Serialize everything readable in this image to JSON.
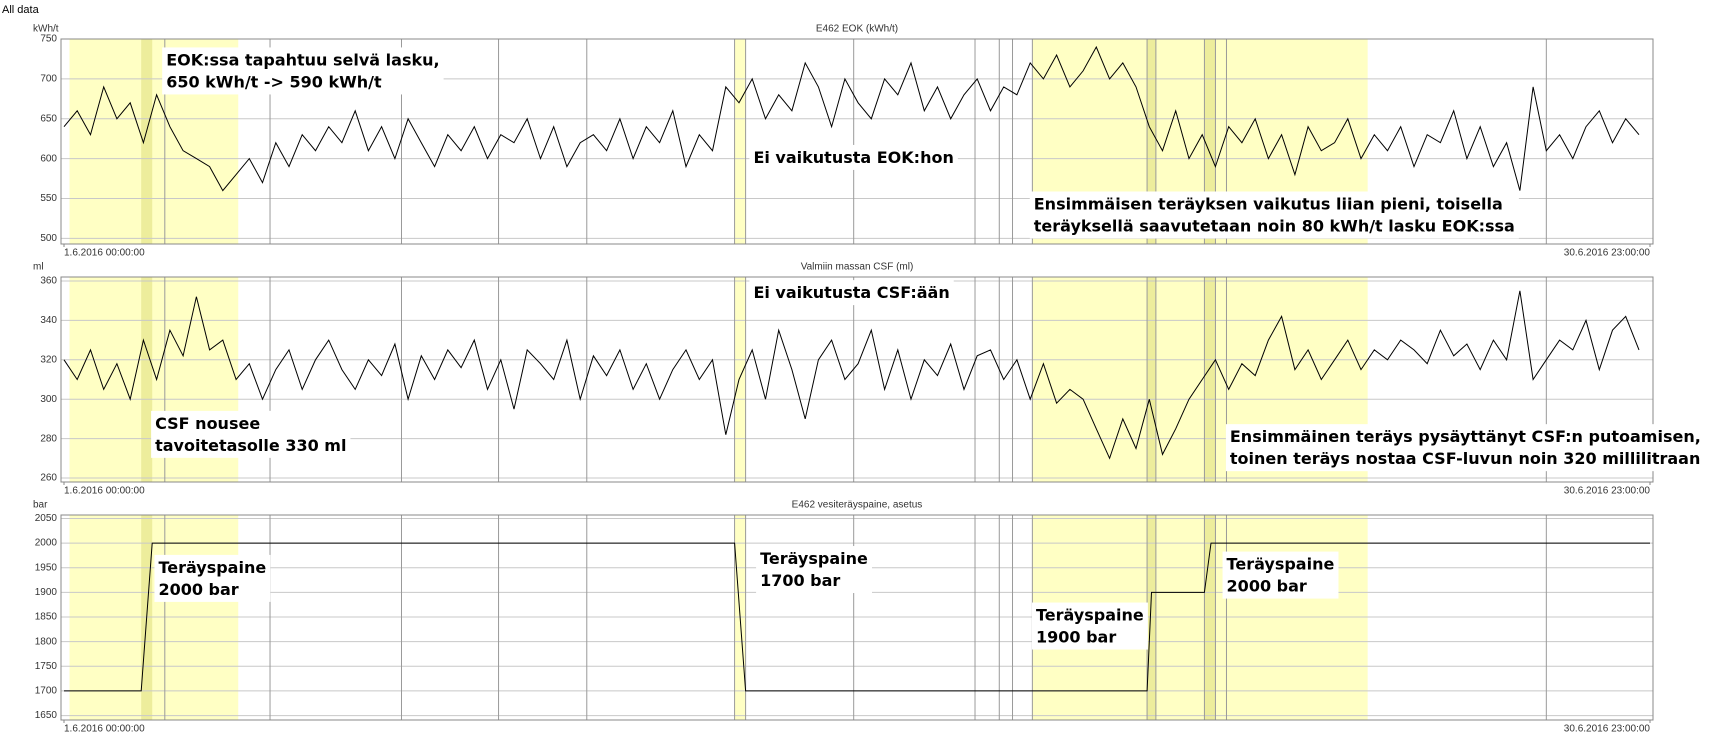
{
  "page_title": "All data",
  "timeline": {
    "xlim": [
      0,
      719
    ],
    "xticks": [
      {
        "value": 0,
        "label": "1.6.2016 00:00:00"
      },
      {
        "value": 719,
        "label": "30.6.2016 23:00:00"
      }
    ],
    "highlight_ranges": [
      [
        2.5,
        79
      ],
      [
        304,
        309
      ],
      [
        439,
        591
      ]
    ],
    "marker_ranges": [
      [
        35,
        40
      ],
      [
        491,
        495
      ],
      [
        517,
        522
      ]
    ],
    "event_lines": [
      45.7,
      93.4,
      153,
      197,
      237,
      304,
      309,
      358,
      413,
      424,
      430,
      439,
      491,
      495,
      517,
      522,
      527,
      672
    ]
  },
  "chart_data": [
    {
      "type": "line",
      "title": "E462 EOK (kWh/t)",
      "y_unit": "kWh/t",
      "ylim": [
        493,
        750
      ],
      "yticks": [
        500,
        550,
        600,
        650,
        700,
        750
      ],
      "grid": true,
      "x": [
        0,
        6,
        12,
        18,
        24,
        30,
        36,
        42,
        48,
        54,
        60,
        66,
        72,
        78,
        84,
        90,
        96,
        102,
        108,
        114,
        120,
        126,
        132,
        138,
        144,
        150,
        156,
        162,
        168,
        174,
        180,
        186,
        192,
        198,
        204,
        210,
        216,
        222,
        228,
        234,
        240,
        246,
        252,
        258,
        264,
        270,
        276,
        282,
        288,
        294,
        300,
        306,
        312,
        318,
        324,
        330,
        336,
        342,
        348,
        354,
        360,
        366,
        372,
        378,
        384,
        390,
        396,
        402,
        408,
        414,
        420,
        426,
        432,
        438,
        444,
        450,
        456,
        462,
        468,
        474,
        480,
        486,
        492,
        498,
        504,
        510,
        516,
        522,
        528,
        534,
        540,
        546,
        552,
        558,
        564,
        570,
        576,
        582,
        588,
        594,
        600,
        606,
        612,
        618,
        624,
        630,
        636,
        642,
        648,
        654,
        660,
        666,
        672,
        678,
        684,
        690,
        696,
        702,
        708,
        714
      ],
      "series": [
        {
          "color": "#000000",
          "values": [
            640,
            660,
            630,
            690,
            650,
            670,
            620,
            680,
            640,
            610,
            600,
            590,
            560,
            580,
            600,
            570,
            620,
            590,
            630,
            610,
            640,
            620,
            660,
            610,
            640,
            600,
            650,
            620,
            590,
            630,
            610,
            640,
            600,
            630,
            620,
            650,
            600,
            640,
            590,
            620,
            630,
            610,
            650,
            600,
            640,
            620,
            660,
            590,
            630,
            610,
            690,
            670,
            700,
            650,
            680,
            660,
            720,
            690,
            640,
            700,
            670,
            650,
            700,
            680,
            720,
            660,
            690,
            650,
            680,
            700,
            660,
            690,
            680,
            720,
            700,
            730,
            690,
            710,
            740,
            700,
            720,
            690,
            640,
            610,
            660,
            600,
            630,
            590,
            640,
            620,
            650,
            600,
            630,
            580,
            640,
            610,
            620,
            650,
            600,
            630,
            610,
            640,
            590,
            630,
            620,
            660,
            600,
            640,
            590,
            620,
            560,
            690,
            610,
            630,
            600,
            640,
            660,
            620,
            650,
            630
          ]
        }
      ],
      "annotations": [
        {
          "lines": [
            "EOK:ssa tapahtuu selvä lasku,",
            "650 kWh/t -> 590 kWh/t"
          ]
        },
        {
          "lines": [
            "Ei vaikutusta EOK:hon"
          ]
        },
        {
          "lines": [
            "Ensimmäisen teräyksen vaikutus liian pieni, toisella",
            "teräyksellä saavutetaan noin 80 kWh/t lasku EOK:ssa"
          ]
        }
      ]
    },
    {
      "type": "line",
      "title": "Valmiin massan CSF (ml)",
      "y_unit": "ml",
      "ylim": [
        258,
        362
      ],
      "yticks": [
        260,
        280,
        300,
        320,
        340,
        360
      ],
      "grid": true,
      "x": [
        0,
        6,
        12,
        18,
        24,
        30,
        36,
        42,
        48,
        54,
        60,
        66,
        72,
        78,
        84,
        90,
        96,
        102,
        108,
        114,
        120,
        126,
        132,
        138,
        144,
        150,
        156,
        162,
        168,
        174,
        180,
        186,
        192,
        198,
        204,
        210,
        216,
        222,
        228,
        234,
        240,
        246,
        252,
        258,
        264,
        270,
        276,
        282,
        288,
        294,
        300,
        306,
        312,
        318,
        324,
        330,
        336,
        342,
        348,
        354,
        360,
        366,
        372,
        378,
        384,
        390,
        396,
        402,
        408,
        414,
        420,
        426,
        432,
        438,
        444,
        450,
        456,
        462,
        468,
        474,
        480,
        486,
        492,
        498,
        504,
        510,
        516,
        522,
        528,
        534,
        540,
        546,
        552,
        558,
        564,
        570,
        576,
        582,
        588,
        594,
        600,
        606,
        612,
        618,
        624,
        630,
        636,
        642,
        648,
        654,
        660,
        666,
        672,
        678,
        684,
        690,
        696,
        702,
        708,
        714
      ],
      "series": [
        {
          "color": "#000000",
          "values": [
            320,
            310,
            325,
            305,
            318,
            300,
            330,
            310,
            335,
            322,
            352,
            325,
            330,
            310,
            318,
            300,
            315,
            325,
            305,
            320,
            330,
            315,
            305,
            320,
            312,
            328,
            300,
            322,
            310,
            325,
            316,
            330,
            305,
            320,
            295,
            325,
            318,
            310,
            330,
            300,
            322,
            312,
            325,
            305,
            318,
            300,
            315,
            325,
            310,
            320,
            282,
            310,
            325,
            300,
            335,
            315,
            290,
            320,
            330,
            310,
            318,
            335,
            305,
            325,
            300,
            320,
            312,
            328,
            305,
            322,
            325,
            310,
            320,
            300,
            318,
            298,
            305,
            300,
            285,
            270,
            290,
            275,
            300,
            272,
            285,
            300,
            310,
            320,
            305,
            318,
            312,
            330,
            342,
            315,
            325,
            310,
            320,
            330,
            315,
            325,
            320,
            330,
            325,
            318,
            335,
            322,
            328,
            315,
            330,
            320,
            355,
            310,
            320,
            330,
            325,
            340,
            315,
            335,
            342,
            325
          ]
        }
      ],
      "annotations": [
        {
          "lines": [
            "Ei vaikutusta CSF:ään"
          ]
        },
        {
          "lines": [
            "CSF nousee",
            "tavoitetasolle 330 ml"
          ]
        },
        {
          "lines": [
            "Ensimmäinen teräys pysäyttänyt CSF:n putoamisen,",
            "toinen teräys nostaa CSF-luvun noin 320 millilitraan"
          ]
        }
      ]
    },
    {
      "type": "line",
      "title": "E462 vesiteräyspaine, asetus",
      "y_unit": "bar",
      "ylim": [
        1641,
        2057
      ],
      "yticks": [
        1650,
        1700,
        1750,
        1800,
        1850,
        1900,
        1950,
        2000,
        2050
      ],
      "grid": true,
      "x": [
        0,
        35,
        40,
        304,
        309,
        491,
        493,
        517,
        520,
        719
      ],
      "series": [
        {
          "color": "#000000",
          "values": [
            1700,
            1700,
            2000,
            2000,
            1700,
            1700,
            1900,
            1900,
            2000,
            2000
          ]
        }
      ],
      "annotations": [
        {
          "lines": [
            "Teräyspaine",
            "2000 bar"
          ]
        },
        {
          "lines": [
            "Teräyspaine",
            "1700 bar"
          ]
        },
        {
          "lines": [
            "Teräyspaine",
            "1900 bar"
          ]
        },
        {
          "lines": [
            "Teräyspaine",
            "2000 bar"
          ]
        }
      ]
    }
  ]
}
